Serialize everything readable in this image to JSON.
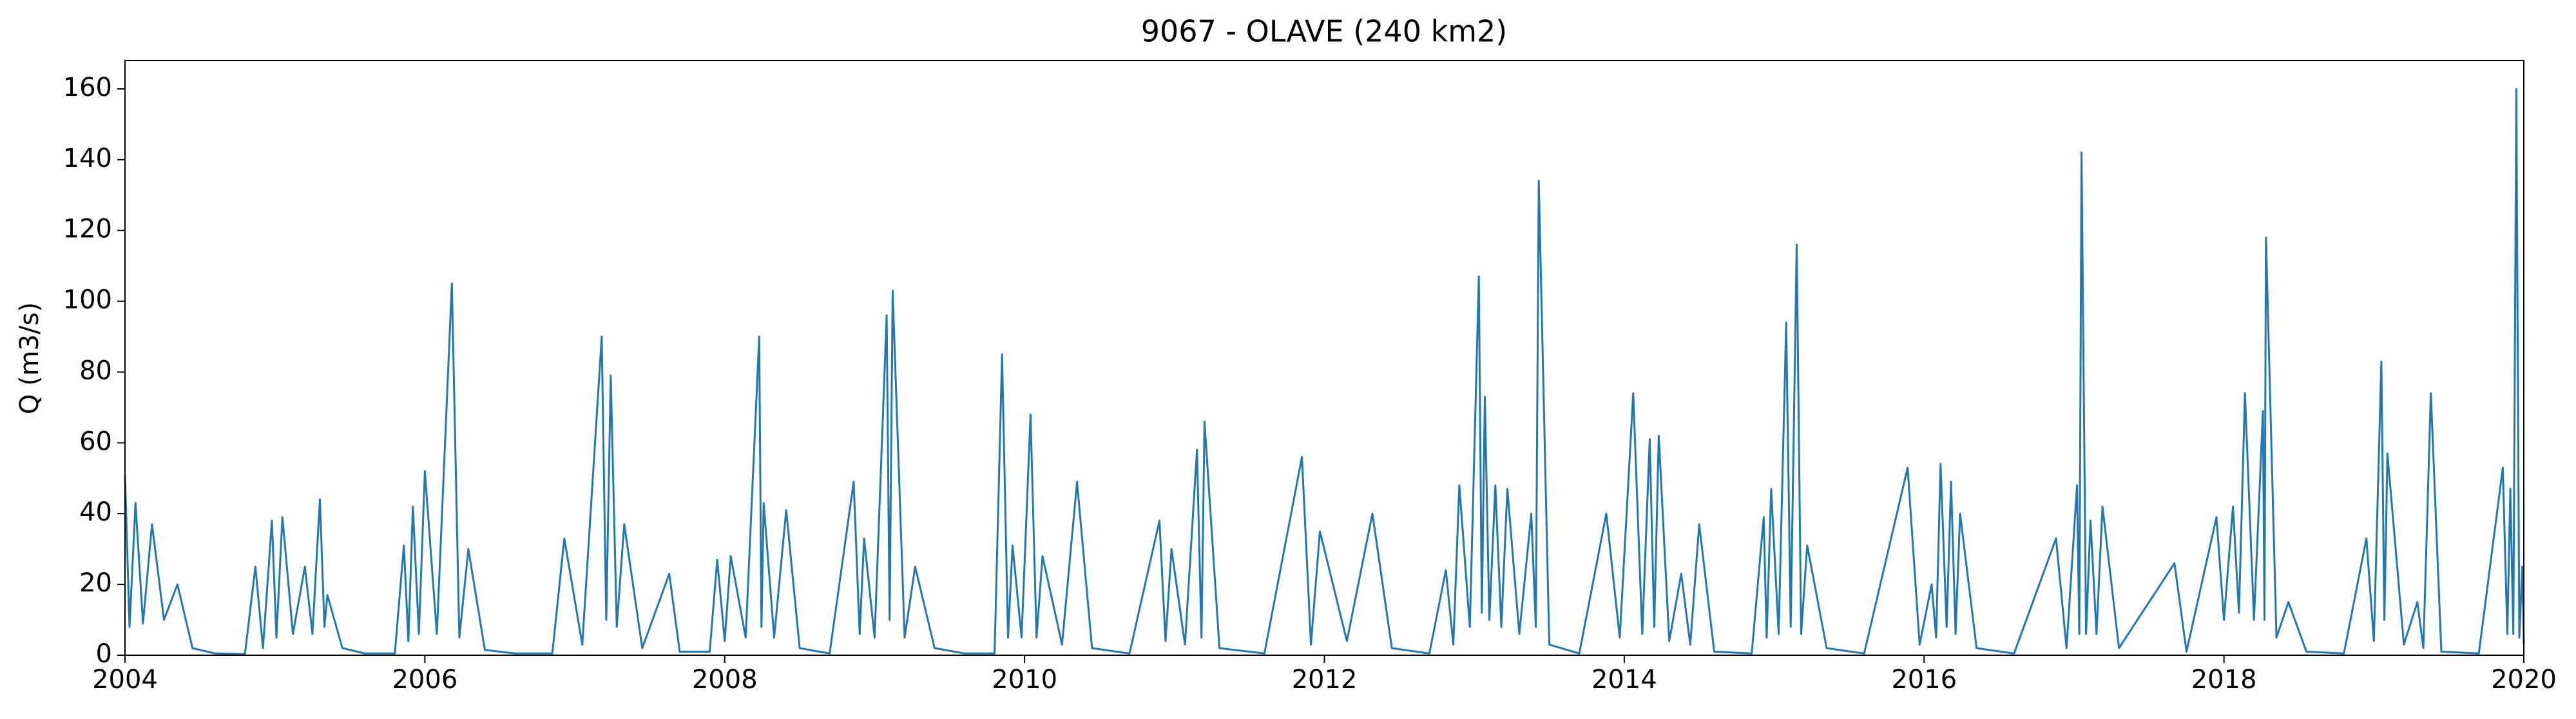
{
  "chart_data": {
    "type": "line",
    "title": "9067 - OLAVE (240 km2)",
    "y_label": "Q (m3/s)",
    "xlim": [
      2004,
      2020
    ],
    "xticks": [
      2004,
      2006,
      2008,
      2010,
      2012,
      2014,
      2016,
      2018,
      2020
    ],
    "ylim": [
      0,
      168
    ],
    "yticks": [
      0,
      20,
      40,
      60,
      80,
      100,
      120,
      140,
      160
    ],
    "grid": false,
    "x": [
      2004.0,
      2004.03,
      2004.07,
      2004.12,
      2004.18,
      2004.26,
      2004.35,
      2004.45,
      2004.6,
      2004.8,
      2004.87,
      2004.92,
      2004.98,
      2005.01,
      2005.05,
      2005.12,
      2005.2,
      2005.25,
      2005.3,
      2005.33,
      2005.35,
      2005.45,
      2005.6,
      2005.8,
      2005.86,
      2005.89,
      2005.92,
      2005.96,
      2006.0,
      2006.08,
      2006.18,
      2006.23,
      2006.29,
      2006.4,
      2006.6,
      2006.85,
      2006.93,
      2007.05,
      2007.18,
      2007.21,
      2007.24,
      2007.28,
      2007.33,
      2007.45,
      2007.63,
      2007.7,
      2007.9,
      2007.95,
      2008.0,
      2008.04,
      2008.14,
      2008.23,
      2008.245,
      2008.26,
      2008.33,
      2008.41,
      2008.5,
      2008.7,
      2008.86,
      2008.9,
      2008.93,
      2009.0,
      2009.08,
      2009.1,
      2009.12,
      2009.2,
      2009.27,
      2009.4,
      2009.6,
      2009.8,
      2009.85,
      2009.89,
      2009.92,
      2009.98,
      2010.04,
      2010.08,
      2010.12,
      2010.25,
      2010.35,
      2010.45,
      2010.7,
      2010.9,
      2010.94,
      2010.98,
      2011.07,
      2011.15,
      2011.18,
      2011.2,
      2011.3,
      2011.6,
      2011.85,
      2011.91,
      2011.97,
      2012.15,
      2012.32,
      2012.45,
      2012.7,
      2012.81,
      2012.86,
      2012.9,
      2012.97,
      2013.03,
      2013.05,
      2013.07,
      2013.1,
      2013.14,
      2013.18,
      2013.22,
      2013.3,
      2013.38,
      2013.41,
      2013.43,
      2013.5,
      2013.7,
      2013.88,
      2013.97,
      2014.06,
      2014.12,
      2014.17,
      2014.2,
      2014.23,
      2014.3,
      2014.38,
      2014.44,
      2014.5,
      2014.6,
      2014.85,
      2014.93,
      2014.95,
      2014.98,
      2015.03,
      2015.08,
      2015.11,
      2015.15,
      2015.18,
      2015.22,
      2015.35,
      2015.6,
      2015.89,
      2015.97,
      2016.05,
      2016.08,
      2016.11,
      2016.15,
      2016.18,
      2016.21,
      2016.24,
      2016.35,
      2016.6,
      2016.88,
      2016.95,
      2017.02,
      2017.035,
      2017.05,
      2017.08,
      2017.11,
      2017.15,
      2017.19,
      2017.3,
      2017.67,
      2017.75,
      2017.95,
      2018.0,
      2018.06,
      2018.1,
      2018.14,
      2018.2,
      2018.26,
      2018.27,
      2018.28,
      2018.35,
      2018.43,
      2018.55,
      2018.8,
      2018.95,
      2019.0,
      2019.05,
      2019.07,
      2019.09,
      2019.2,
      2019.29,
      2019.33,
      2019.38,
      2019.45,
      2019.7,
      2019.86,
      2019.89,
      2019.91,
      2019.93,
      2019.95,
      2019.97,
      2019.99,
      2020.0
    ],
    "series": [
      {
        "color": "#1f77b4",
        "values": [
          51,
          8,
          43,
          9,
          37,
          10,
          20,
          2,
          0.5,
          0.3,
          25,
          2,
          38,
          5,
          39,
          6,
          25,
          6,
          44,
          8,
          17,
          2,
          0.5,
          0.5,
          31,
          4,
          42,
          6,
          52,
          6,
          105,
          5,
          30,
          1.5,
          0.5,
          0.5,
          33,
          3,
          90,
          10,
          79,
          8,
          37,
          2,
          23,
          1,
          1,
          27,
          4,
          28,
          5,
          90,
          8,
          43,
          5,
          41,
          2,
          0.5,
          49,
          6,
          33,
          5,
          96,
          10,
          103,
          5,
          25,
          2,
          0.5,
          0.5,
          85,
          5,
          31,
          5,
          68,
          5,
          28,
          3,
          49,
          2,
          0.5,
          38,
          4,
          30,
          3,
          58,
          5,
          66,
          2,
          0.5,
          56,
          3,
          35,
          4,
          40,
          2,
          0.5,
          24,
          3,
          48,
          8,
          107,
          12,
          73,
          10,
          48,
          8,
          47,
          6,
          40,
          8,
          134,
          3,
          0.5,
          40,
          5,
          74,
          6,
          61,
          8,
          62,
          4,
          23,
          3,
          37,
          1,
          0.5,
          39,
          5,
          47,
          6,
          94,
          8,
          116,
          6,
          31,
          2,
          0.5,
          53,
          3,
          20,
          5,
          54,
          8,
          49,
          6,
          40,
          2,
          0.5,
          33,
          2,
          48,
          6,
          142,
          6,
          38,
          6,
          42,
          2,
          26,
          1,
          39,
          10,
          42,
          12,
          74,
          10,
          69,
          10,
          118,
          5,
          15,
          1,
          0.5,
          33,
          4,
          83,
          10,
          57,
          3,
          15,
          2,
          74,
          1,
          0.5,
          53,
          6,
          47,
          6,
          160,
          5,
          25,
          3
        ]
      }
    ]
  }
}
